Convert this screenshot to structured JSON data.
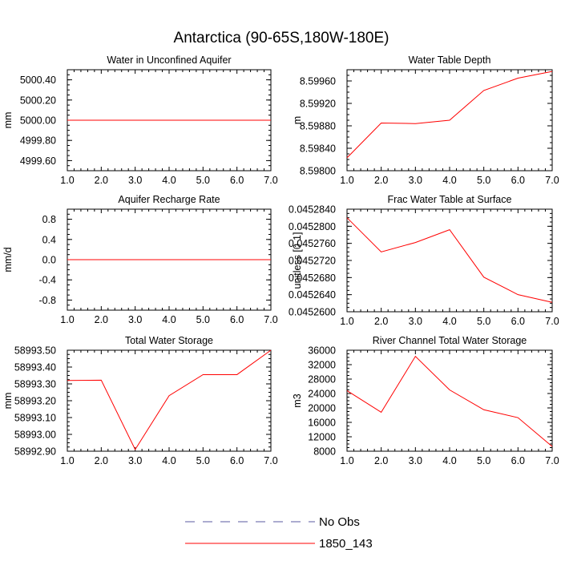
{
  "figure": {
    "title": "Antarctica (90-65S,180W-180E)"
  },
  "colors": {
    "model_line": "#ff0000",
    "obs_line": "#5a5aa0",
    "axis": "#000000"
  },
  "chart_data": [
    {
      "type": "line",
      "title": "Water in Unconfined Aquifer",
      "ylabel": "mm",
      "xlim": [
        1,
        7
      ],
      "ylim": [
        4999.5,
        5000.5
      ],
      "x_ticks": [
        1,
        2,
        3,
        4,
        5,
        6,
        7
      ],
      "x_tick_labels": [
        "1.0",
        "2.0",
        "3.0",
        "4.0",
        "5.0",
        "6.0",
        "7.0"
      ],
      "y_ticks": [
        4999.6,
        4999.8,
        5000.0,
        5000.2,
        5000.4
      ],
      "y_tick_labels": [
        "4999.60",
        "4999.80",
        "5000.00",
        "5000.20",
        "5000.40"
      ],
      "series": [
        {
          "name": "1850_143",
          "x": [
            1,
            2,
            3,
            4,
            5,
            6,
            7
          ],
          "values": [
            5000,
            5000,
            5000,
            5000,
            5000,
            5000,
            5000
          ]
        }
      ]
    },
    {
      "type": "line",
      "title": "Water Table Depth",
      "ylabel": "m",
      "xlim": [
        1,
        7
      ],
      "ylim": [
        8.598,
        8.5998
      ],
      "x_ticks": [
        1,
        2,
        3,
        4,
        5,
        6,
        7
      ],
      "x_tick_labels": [
        "1.0",
        "2.0",
        "3.0",
        "4.0",
        "5.0",
        "6.0",
        "7.0"
      ],
      "y_ticks": [
        8.598,
        8.5984,
        8.5988,
        8.5992,
        8.5996
      ],
      "y_tick_labels": [
        "8.59800",
        "8.59840",
        "8.59880",
        "8.59920",
        "8.59960"
      ],
      "series": [
        {
          "name": "1850_143",
          "x": [
            1,
            2,
            3,
            4,
            5,
            6,
            7
          ],
          "values": [
            8.59823,
            8.59885,
            8.59884,
            8.5989,
            8.59943,
            8.59965,
            8.59977
          ]
        }
      ]
    },
    {
      "type": "line",
      "title": "Aquifer Recharge Rate",
      "ylabel": "mm/d",
      "xlim": [
        1,
        7
      ],
      "ylim": [
        -1.0,
        1.0
      ],
      "x_ticks": [
        1,
        2,
        3,
        4,
        5,
        6,
        7
      ],
      "x_tick_labels": [
        "1.0",
        "2.0",
        "3.0",
        "4.0",
        "5.0",
        "6.0",
        "7.0"
      ],
      "y_ticks": [
        -0.8,
        -0.4,
        0.0,
        0.4,
        0.8
      ],
      "y_tick_labels": [
        "-0.8",
        "-0.4",
        "0.0",
        "0.4",
        "0.8"
      ],
      "series": [
        {
          "name": "1850_143",
          "x": [
            1,
            2,
            3,
            4,
            5,
            6,
            7
          ],
          "values": [
            0,
            0,
            0,
            0,
            0,
            0,
            0
          ]
        }
      ]
    },
    {
      "type": "line",
      "title": "Frac Water Table at Surface",
      "ylabel": "unitless [0-1]",
      "xlim": [
        1,
        7
      ],
      "ylim": [
        0.04526,
        0.045284
      ],
      "x_ticks": [
        1,
        2,
        3,
        4,
        5,
        6,
        7
      ],
      "x_tick_labels": [
        "1.0",
        "2.0",
        "3.0",
        "4.0",
        "5.0",
        "6.0",
        "7.0"
      ],
      "y_ticks": [
        0.04526,
        0.045264,
        0.045268,
        0.045272,
        0.045276,
        0.04528,
        0.045284
      ],
      "y_tick_labels": [
        "0.0452600",
        "0.0452640",
        "0.0452680",
        "0.0452720",
        "0.0452760",
        "0.0452800",
        "0.0452840"
      ],
      "series": [
        {
          "name": "1850_143",
          "x": [
            1,
            2,
            3,
            4,
            5,
            6,
            7
          ],
          "values": [
            0.045282,
            0.045274,
            0.0452762,
            0.0452792,
            0.0452681,
            0.045264,
            0.0452622
          ]
        }
      ]
    },
    {
      "type": "line",
      "title": "Total Water Storage",
      "ylabel": "mm",
      "xlim": [
        1,
        7
      ],
      "ylim": [
        58992.9,
        58993.5
      ],
      "x_ticks": [
        1,
        2,
        3,
        4,
        5,
        6,
        7
      ],
      "x_tick_labels": [
        "1.0",
        "2.0",
        "3.0",
        "4.0",
        "5.0",
        "6.0",
        "7.0"
      ],
      "y_ticks": [
        58992.9,
        58993.0,
        58993.1,
        58993.2,
        58993.3,
        58993.4,
        58993.5
      ],
      "y_tick_labels": [
        "58992.90",
        "58993.00",
        "58993.10",
        "58993.20",
        "58993.30",
        "58993.40",
        "58993.50"
      ],
      "series": [
        {
          "name": "1850_143",
          "x": [
            1,
            2,
            3,
            4,
            5,
            6,
            7
          ],
          "values": [
            58993.32,
            58993.322,
            58992.91,
            58993.23,
            58993.355,
            58993.355,
            58993.5
          ]
        }
      ]
    },
    {
      "type": "line",
      "title": "River Channel Total Water Storage",
      "ylabel": "m3",
      "xlim": [
        1,
        7
      ],
      "ylim": [
        8000,
        36000
      ],
      "x_ticks": [
        1,
        2,
        3,
        4,
        5,
        6,
        7
      ],
      "x_tick_labels": [
        "1.0",
        "2.0",
        "3.0",
        "4.0",
        "5.0",
        "6.0",
        "7.0"
      ],
      "y_ticks": [
        8000,
        12000,
        16000,
        20000,
        24000,
        28000,
        32000,
        36000
      ],
      "y_tick_labels": [
        "8000",
        "12000",
        "16000",
        "20000",
        "24000",
        "28000",
        "32000",
        "36000"
      ],
      "series": [
        {
          "name": "1850_143",
          "x": [
            1,
            2,
            3,
            4,
            5,
            6,
            7
          ],
          "values": [
            24800,
            18800,
            34300,
            25000,
            19500,
            17300,
            9300
          ]
        }
      ]
    }
  ],
  "legend": {
    "items": [
      {
        "label": "No Obs",
        "style": "dashed",
        "color": "#5a5aa0"
      },
      {
        "label": "1850_143",
        "style": "solid",
        "color": "#ff0000"
      }
    ]
  }
}
